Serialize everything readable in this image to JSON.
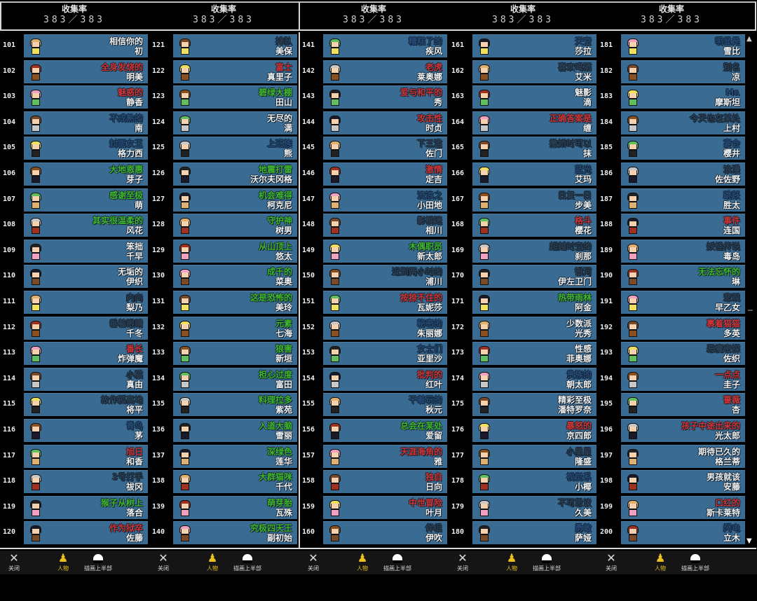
{
  "header": {
    "title": "收集率",
    "value": "383／383",
    "count": 5
  },
  "colors": {
    "w": "#f0f0f0",
    "r": "#d03434",
    "g": "#3fb82c",
    "b": "#244a78",
    "d": "#2c3e52",
    "card_bg": "#3a6b93"
  },
  "footer": {
    "close_label": "关闭",
    "characters_label": "人物",
    "draw_top_label": "描画上半部"
  },
  "columns": [
    [
      {
        "no": "101",
        "title": "相信你的",
        "name": "初",
        "c": "w"
      },
      {
        "no": "102",
        "title": "全身发烧的",
        "name": "明美",
        "c": "r"
      },
      {
        "no": "103",
        "title": "魅惑的",
        "name": "静香",
        "c": "r"
      },
      {
        "no": "104",
        "title": "不成熟的",
        "name": "南",
        "c": "b"
      },
      {
        "no": "105",
        "title": "封面女王",
        "name": "格力西",
        "c": "b"
      },
      {
        "no": "106",
        "title": "大地恩惠",
        "name": "芽子",
        "c": "g"
      },
      {
        "no": "107",
        "title": "感谢至极",
        "name": "萌",
        "c": "g"
      },
      {
        "no": "108",
        "title": "其实很温柔的",
        "name": "风花",
        "c": "g"
      },
      {
        "no": "109",
        "title": "笨拙",
        "name": "千早",
        "c": "w"
      },
      {
        "no": "110",
        "title": "无垢的",
        "name": "伊织",
        "c": "w"
      },
      {
        "no": "111",
        "title": "内向",
        "name": "梨乃",
        "c": "d"
      },
      {
        "no": "112",
        "title": "垂着眼睛",
        "name": "千冬",
        "c": "d"
      },
      {
        "no": "113",
        "title": "番长",
        "name": "炸弹魔",
        "c": "r"
      },
      {
        "no": "114",
        "title": "小猫",
        "name": "真由",
        "c": "d"
      },
      {
        "no": "115",
        "title": "故作孤高地",
        "name": "将平",
        "c": "d"
      },
      {
        "no": "116",
        "title": "青鸟",
        "name": "茅",
        "c": "b"
      },
      {
        "no": "117",
        "title": "旭日",
        "name": "和香",
        "c": "r"
      },
      {
        "no": "118",
        "title": "3号打手",
        "name": "祓冈",
        "c": "d"
      },
      {
        "no": "119",
        "title": "猴子从树上",
        "name": "落合",
        "c": "g"
      },
      {
        "no": "120",
        "title": "作为狱卒",
        "name": "佐藤",
        "c": "r"
      }
    ],
    [
      {
        "no": "121",
        "title": "排队",
        "name": "美保",
        "c": "d"
      },
      {
        "no": "122",
        "title": "富士",
        "name": "真里子",
        "c": "r"
      },
      {
        "no": "123",
        "title": "碧绿大棚",
        "name": "田山",
        "c": "g"
      },
      {
        "no": "124",
        "title": "无尽的",
        "name": "满",
        "c": "w"
      },
      {
        "no": "125",
        "title": "上班族",
        "name": "熊",
        "c": "b"
      },
      {
        "no": "126",
        "title": "地震打雷",
        "name": "沃尔夫冈格",
        "c": "g"
      },
      {
        "no": "127",
        "title": "机会难得",
        "name": "柯克尼",
        "c": "g"
      },
      {
        "no": "128",
        "title": "守护神",
        "name": "树男",
        "c": "g"
      },
      {
        "no": "129",
        "title": "从山顶上",
        "name": "悠太",
        "c": "g"
      },
      {
        "no": "130",
        "title": "成千的",
        "name": "菜奥",
        "c": "g"
      },
      {
        "no": "131",
        "title": "这是恐怖的",
        "name": "美玲",
        "c": "g"
      },
      {
        "no": "132",
        "title": "元素",
        "name": "七海",
        "c": "g"
      },
      {
        "no": "133",
        "title": "狼害",
        "name": "新垣",
        "c": "g"
      },
      {
        "no": "134",
        "title": "担心过度",
        "name": "富田",
        "c": "g"
      },
      {
        "no": "135",
        "title": "料理拉多",
        "name": "紫苑",
        "c": "g"
      },
      {
        "no": "136",
        "title": "入道大脑",
        "name": "雪丽",
        "c": "g"
      },
      {
        "no": "137",
        "title": "深绿色",
        "name": "莲华",
        "c": "g"
      },
      {
        "no": "138",
        "title": "大群猫咪",
        "name": "千代",
        "c": "g"
      },
      {
        "no": "139",
        "title": "萌芽胎",
        "name": "瓦殊",
        "c": "g"
      },
      {
        "no": "140",
        "title": "究极四天王",
        "name": "副初始",
        "c": "g"
      }
    ],
    [
      {
        "no": "141",
        "title": "糟糕了的",
        "name": "疾风",
        "c": "b"
      },
      {
        "no": "142",
        "title": "老虎",
        "name": "莱奥娜",
        "c": "r"
      },
      {
        "no": "143",
        "title": "爱与和平的",
        "name": "秀",
        "c": "r"
      },
      {
        "no": "144",
        "title": "攻击性",
        "name": "时贞",
        "c": "r"
      },
      {
        "no": "145",
        "title": "下三滥",
        "name": "佐门",
        "c": "d"
      },
      {
        "no": "146",
        "title": "激情",
        "name": "定吉",
        "c": "r"
      },
      {
        "no": "147",
        "title": "流浪之",
        "name": "小田地",
        "c": "b"
      },
      {
        "no": "148",
        "title": "影视迷",
        "name": "相川",
        "c": "d"
      },
      {
        "no": "149",
        "title": "木偶职员",
        "name": "新太郎",
        "c": "g"
      },
      {
        "no": "150",
        "title": "迟到两小时的",
        "name": "浦川",
        "c": "d"
      },
      {
        "no": "151",
        "title": "按捺不住的",
        "name": "瓦妮莎",
        "c": "r"
      },
      {
        "no": "152",
        "title": "秘密的",
        "name": "朱丽娜",
        "c": "b"
      },
      {
        "no": "153",
        "title": "女士们",
        "name": "亚里沙",
        "c": "b"
      },
      {
        "no": "154",
        "title": "批判的",
        "name": "红叶",
        "c": "r"
      },
      {
        "no": "155",
        "title": "干着玩的",
        "name": "秋元",
        "c": "b"
      },
      {
        "no": "156",
        "title": "总会在某处",
        "name": "爱留",
        "c": "g"
      },
      {
        "no": "157",
        "title": "天涯海角的",
        "name": "雅",
        "c": "r"
      },
      {
        "no": "158",
        "title": "独自",
        "name": "日向",
        "c": "r"
      },
      {
        "no": "159",
        "title": "中世冒险",
        "name": "叶月",
        "c": "r"
      },
      {
        "no": "160",
        "title": "伴侣",
        "name": "伊吹",
        "c": "d"
      }
    ],
    [
      {
        "no": "161",
        "title": "天空",
        "name": "莎拉",
        "c": "b"
      },
      {
        "no": "162",
        "title": "喜欢喝酒",
        "name": "艾米",
        "c": "d"
      },
      {
        "no": "163",
        "title": "魅影",
        "name": "滴",
        "c": "w"
      },
      {
        "no": "164",
        "title": "正确答案是",
        "name": "缠",
        "c": "r"
      },
      {
        "no": "165",
        "title": "撒娇时可以",
        "name": "抹",
        "c": "d"
      },
      {
        "no": "166",
        "title": "蓝光",
        "name": "艾玛",
        "c": "b"
      },
      {
        "no": "167",
        "title": "日复一日",
        "name": "步美",
        "c": "d"
      },
      {
        "no": "168",
        "title": "格斗",
        "name": "樱花",
        "c": "r"
      },
      {
        "no": "169",
        "title": "超越时空的",
        "name": "刹那",
        "c": "d"
      },
      {
        "no": "170",
        "title": "银河",
        "name": "伊左卫门",
        "c": "d"
      },
      {
        "no": "171",
        "title": "热带雨林",
        "name": "阿金",
        "c": "g"
      },
      {
        "no": "172",
        "title": "少数派",
        "name": "光秀",
        "c": "w"
      },
      {
        "no": "173",
        "title": "性感",
        "name": "菲奥娜",
        "c": "w"
      },
      {
        "no": "174",
        "title": "贵族的",
        "name": "朝太郎",
        "c": "b"
      },
      {
        "no": "175",
        "title": "精彩至极",
        "name": "潘特罗奈",
        "c": "w"
      },
      {
        "no": "176",
        "title": "暴怒的",
        "name": "京四郎",
        "c": "r"
      },
      {
        "no": "177",
        "title": "小星星",
        "name": "隆盛",
        "c": "d"
      },
      {
        "no": "178",
        "title": "视觉系",
        "name": "小椰",
        "c": "b"
      },
      {
        "no": "179",
        "title": "不可思议",
        "name": "久美",
        "c": "d"
      },
      {
        "no": "180",
        "title": "勇敢",
        "name": "萨娅",
        "c": "b"
      }
    ],
    [
      {
        "no": "181",
        "title": "明显是",
        "name": "雪比",
        "c": "b"
      },
      {
        "no": "182",
        "title": "别名",
        "name": "凉",
        "c": "d"
      },
      {
        "no": "183",
        "title": "Mr.",
        "name": "摩斯坦",
        "c": "b"
      },
      {
        "no": "184",
        "title": "今天也在某处",
        "name": "上村",
        "c": "d"
      },
      {
        "no": "185",
        "title": "宴会",
        "name": "樱井",
        "c": "b"
      },
      {
        "no": "186",
        "title": "浪漫",
        "name": "佐佐野",
        "c": "d"
      },
      {
        "no": "187",
        "title": "跳跃",
        "name": "胜太",
        "c": "b"
      },
      {
        "no": "188",
        "title": "事件",
        "name": "连国",
        "c": "r"
      },
      {
        "no": "189",
        "title": "妖怪传说",
        "name": "毒岛",
        "c": "d"
      },
      {
        "no": "190",
        "title": "无法忘怀的",
        "name": "琳",
        "c": "g"
      },
      {
        "no": "191",
        "title": "悲观",
        "name": "早乙女",
        "c": "d"
      },
      {
        "no": "192",
        "title": "裹着猫猫",
        "name": "多英",
        "c": "r"
      },
      {
        "no": "193",
        "title": "恶魔密探",
        "name": "佐织",
        "c": "d"
      },
      {
        "no": "194",
        "title": "一点点",
        "name": "圭子",
        "c": "r"
      },
      {
        "no": "195",
        "title": "蔷薇",
        "name": "杏",
        "c": "r"
      },
      {
        "no": "196",
        "title": "孩子中途出来的",
        "name": "光太郎",
        "c": "r"
      },
      {
        "no": "197",
        "title": "期待已久的",
        "name": "格兰蒂",
        "c": "w"
      },
      {
        "no": "198",
        "title": "男孩就该",
        "name": "安藤",
        "c": "w"
      },
      {
        "no": "199",
        "title": "口红的",
        "name": "斯卡莱特",
        "c": "r"
      },
      {
        "no": "200",
        "title": "闪电",
        "name": "立木",
        "c": "b"
      }
    ]
  ]
}
